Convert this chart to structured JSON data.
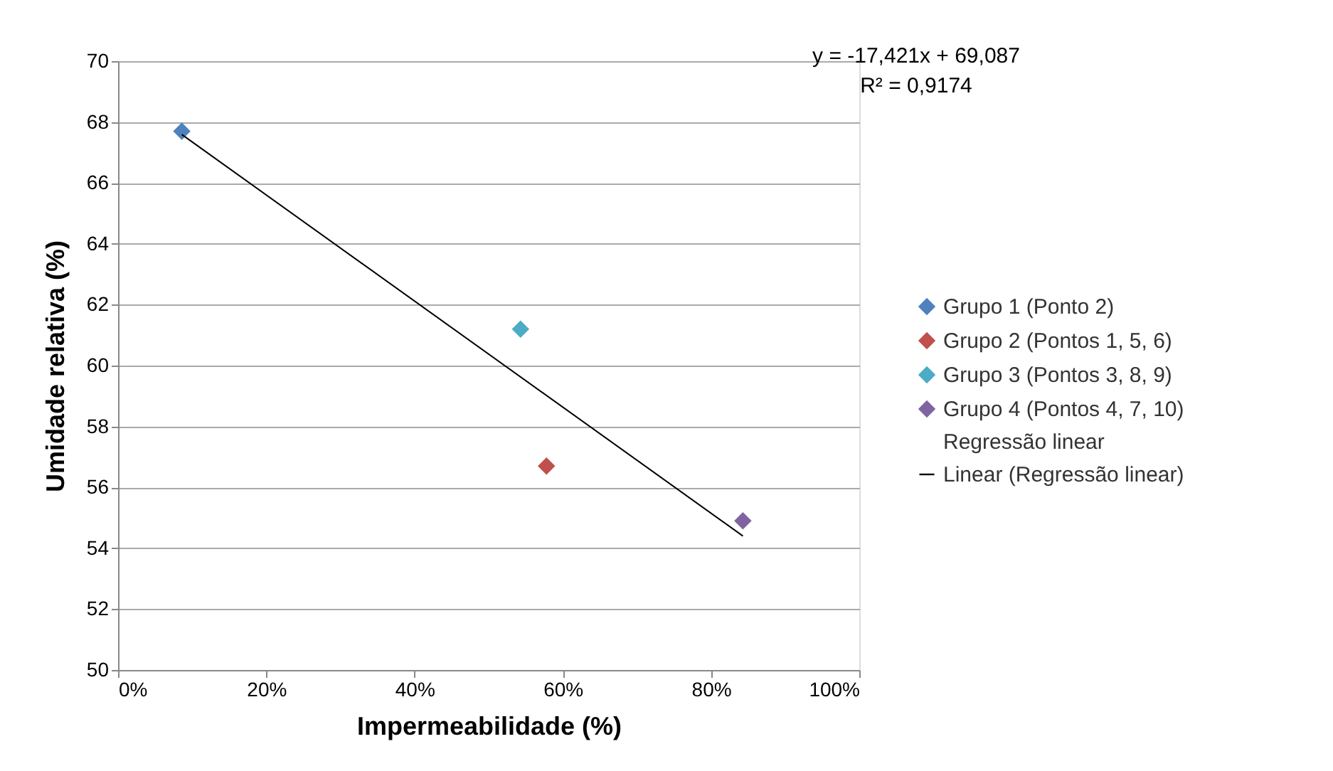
{
  "chart_data": {
    "type": "scatter",
    "xlabel": "Impermeabilidade (%)",
    "ylabel": "Umidade relativa (%)",
    "xlim": [
      0,
      1
    ],
    "xticks": [
      {
        "value": 0,
        "label": "0%"
      },
      {
        "value": 0.2,
        "label": "20%"
      },
      {
        "value": 0.4,
        "label": "40%"
      },
      {
        "value": 0.6,
        "label": "60%"
      },
      {
        "value": 0.8,
        "label": "80%"
      },
      {
        "value": 1,
        "label": "100%"
      }
    ],
    "ylim": [
      50,
      70
    ],
    "yticks": [
      50,
      52,
      54,
      56,
      58,
      60,
      62,
      64,
      66,
      68,
      70
    ],
    "grid": "y",
    "legend": "right",
    "marker": "diamond",
    "series": [
      {
        "name": "Grupo 1 (Ponto 2)",
        "color": "#4f81bd",
        "x": [
          0.086
        ],
        "values": [
          67.7
        ]
      },
      {
        "name": "Grupo 2 (Pontos 1, 5, 6)",
        "color": "#c0504d",
        "x": [
          0.578
        ],
        "values": [
          56.7
        ]
      },
      {
        "name": "Grupo 3 (Pontos 3, 8, 9)",
        "color": "#4bacc6",
        "x": [
          0.543
        ],
        "values": [
          61.2
        ]
      },
      {
        "name": "Grupo 4 (Pontos 4, 7, 10)",
        "color": "#8064a2",
        "x": [
          0.843
        ],
        "values": [
          54.9
        ]
      },
      {
        "name": "Regressão linear",
        "marker": "none"
      },
      {
        "name": "Linear (Regressão linear)",
        "type": "line",
        "marker": "none",
        "line_style": "solid",
        "color": "#000000",
        "x": [
          0.086,
          0.843
        ],
        "values": [
          67.59,
          54.4
        ]
      }
    ],
    "annotations": [
      "y = -17,421x + 69,087",
      "R² = 0,9174"
    ]
  }
}
